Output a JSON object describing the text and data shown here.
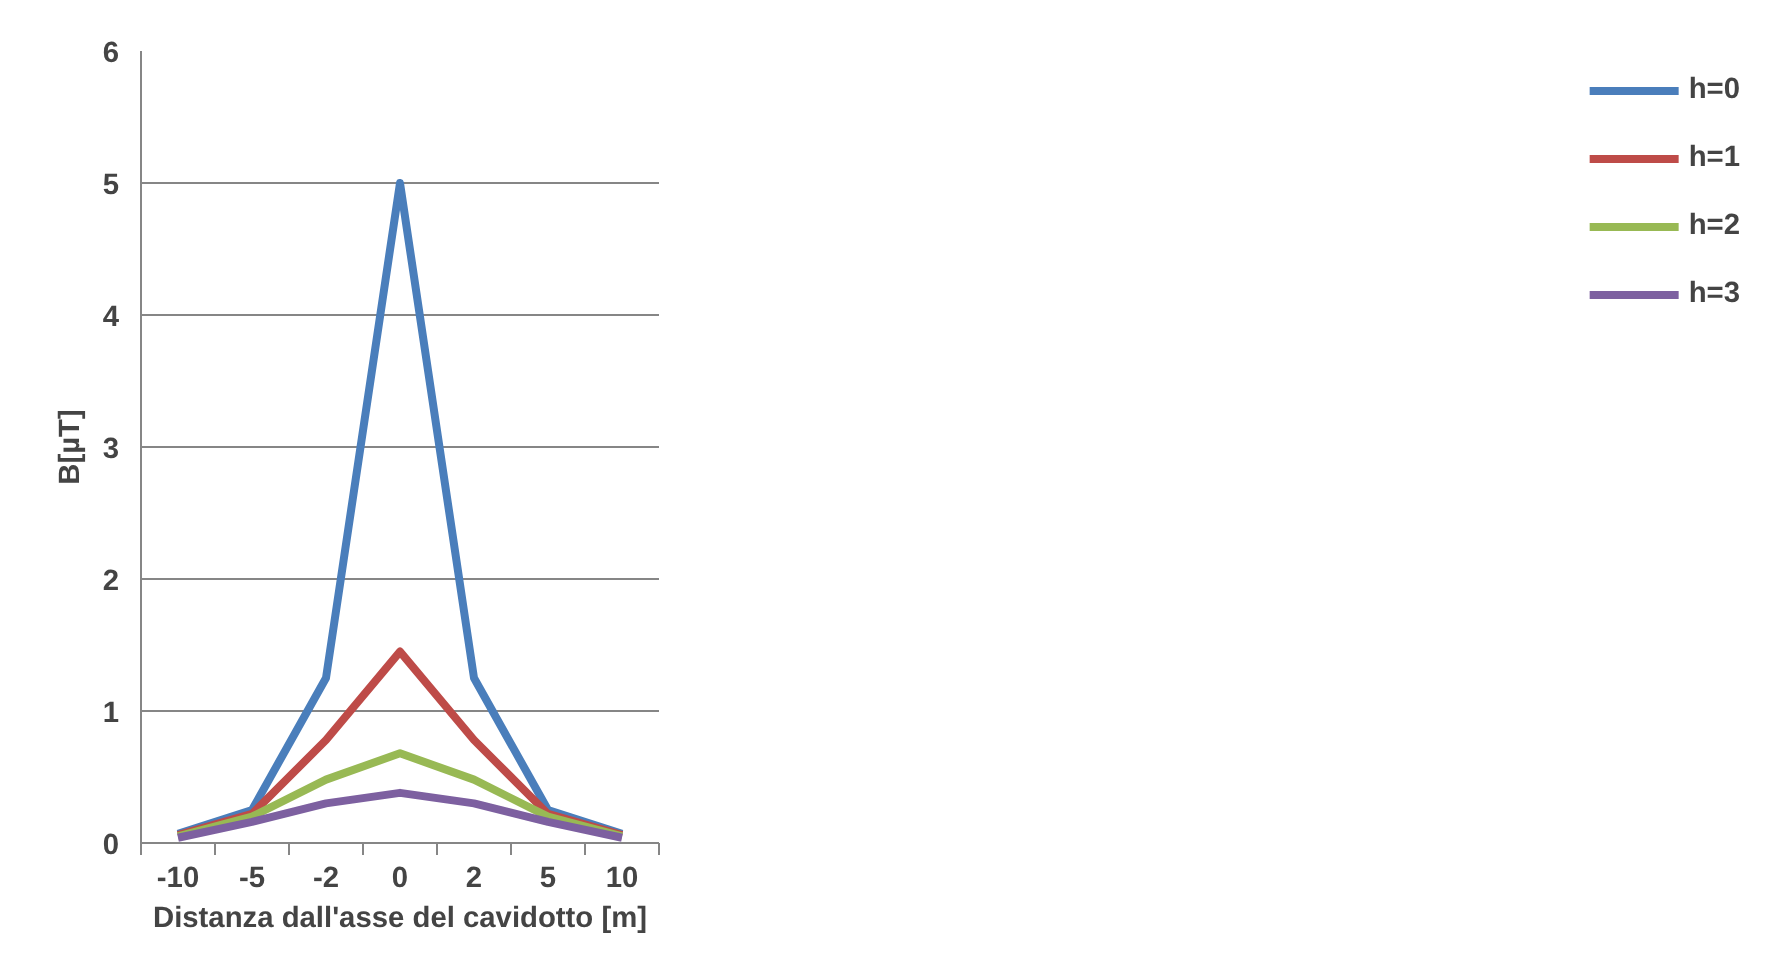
{
  "chart_data": {
    "type": "line",
    "xlabel": "Distanza dall'asse del cavidotto [m]",
    "ylabel": "B[µT]",
    "categories": [
      "-10",
      "-5",
      "-2",
      "0",
      "2",
      "5",
      "10"
    ],
    "series": [
      {
        "name": "h=0",
        "color": "#4a7ebb",
        "values": [
          0.07,
          0.25,
          1.25,
          5.0,
          1.25,
          0.25,
          0.07
        ]
      },
      {
        "name": "h=1",
        "color": "#be4b48",
        "values": [
          0.06,
          0.22,
          0.78,
          1.45,
          0.78,
          0.22,
          0.06
        ]
      },
      {
        "name": "h=2",
        "color": "#98b954",
        "values": [
          0.05,
          0.2,
          0.48,
          0.68,
          0.48,
          0.2,
          0.05
        ]
      },
      {
        "name": "h=3",
        "color": "#7d60a0",
        "values": [
          0.04,
          0.16,
          0.3,
          0.38,
          0.3,
          0.16,
          0.04
        ]
      }
    ],
    "ylim": [
      0,
      6
    ],
    "yticks": [
      0,
      1,
      2,
      3,
      4,
      5,
      6
    ],
    "grid": "y",
    "legend": "right",
    "marker": "none",
    "line_style": "solid"
  }
}
